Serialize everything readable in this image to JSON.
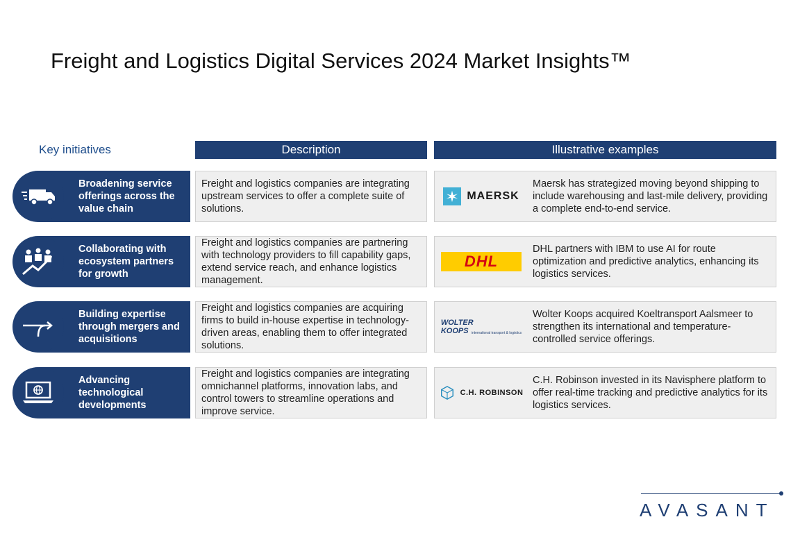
{
  "title": "Freight and Logistics Digital Services 2024 Market Insights™",
  "columns": {
    "key": "Key initiatives",
    "description": "Description",
    "examples": "Illustrative examples"
  },
  "rows": [
    {
      "initiative": "Broadening service offerings across the value chain",
      "icon": "delivery-truck-icon",
      "description": "Freight and logistics companies are integrating upstream services to offer a complete suite of solutions.",
      "logo": "MAERSK",
      "example": "Maersk has strategized moving beyond shipping to include warehousing and last-mile delivery, providing a complete end-to-end service."
    },
    {
      "initiative": "Collaborating with ecosystem partners for growth",
      "icon": "team-growth-icon",
      "description": "Freight and logistics companies are partnering with technology providers to fill capability gaps, extend service reach, and enhance logistics management.",
      "logo": "DHL",
      "example": "DHL partners with IBM to use AI for route optimization and predictive analytics, enhancing its logistics services."
    },
    {
      "initiative": "Building expertise through mergers and acquisitions",
      "icon": "merge-arrow-icon",
      "description": "Freight and logistics companies are acquiring firms to build in-house expertise in technology-driven areas, enabling them to offer integrated solutions.",
      "logo_line1": "WOLTER",
      "logo_line2": "KOOPS",
      "logo_sub": "international transport & logistics",
      "example": "Wolter Koops acquired Koeltransport Aalsmeer to strengthen its international and temperature-controlled service offerings."
    },
    {
      "initiative": "Advancing technological developments",
      "icon": "laptop-globe-icon",
      "description": "Freight and logistics companies are integrating omnichannel platforms, innovation labs, and control towers to streamline operations and improve service.",
      "logo": "C.H. ROBINSON",
      "example": "C.H. Robinson invested in its Navisphere platform to offer real-time tracking and predictive analytics for its logistics services."
    }
  ],
  "brand": "AVASANT",
  "colors": {
    "navy": "#1f3f73",
    "box": "#efefef",
    "maersk": "#42b0d5",
    "dhl_yellow": "#ffcc00",
    "dhl_red": "#d40511"
  }
}
